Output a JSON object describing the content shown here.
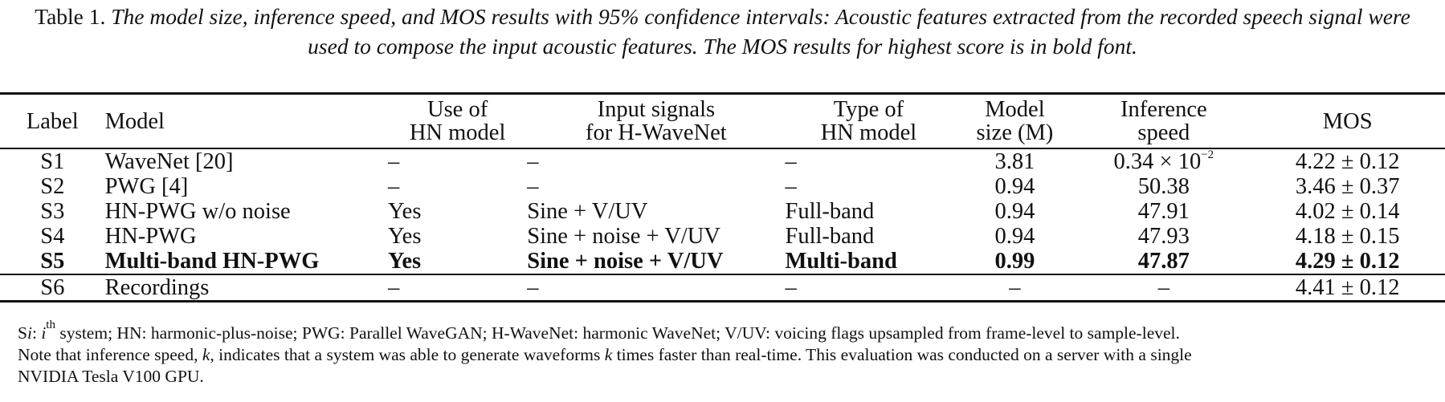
{
  "caption": {
    "label": "Table 1.",
    "text": "The model size, inference speed, and MOS results with 95% confidence intervals: Acoustic features extracted from the recorded speech signal were used to compose the input acoustic features. The MOS results for highest score is in bold font."
  },
  "table": {
    "headers": [
      [
        "Label"
      ],
      [
        "Model"
      ],
      [
        "Use of",
        "HN model"
      ],
      [
        "Input signals",
        "for H-WaveNet"
      ],
      [
        "Type of",
        "HN model"
      ],
      [
        "Model",
        "size (M)"
      ],
      [
        "Inference",
        "speed"
      ],
      [
        "MOS"
      ]
    ],
    "rows": [
      {
        "label": "S1",
        "model": "WaveNet [20]",
        "use_hn": "–",
        "input": "–",
        "type": "–",
        "size": "3.81",
        "speed": "0.34 × 10",
        "speed_exp": "−2",
        "mos": "4.22 ± 0.12"
      },
      {
        "label": "S2",
        "model": "PWG [4]",
        "use_hn": "–",
        "input": "–",
        "type": "–",
        "size": "0.94",
        "speed": "50.38",
        "speed_exp": "",
        "mos": "3.46 ± 0.37"
      },
      {
        "label": "S3",
        "model": "HN-PWG w/o noise",
        "use_hn": "Yes",
        "input": "Sine + V/UV",
        "type": "Full-band",
        "size": "0.94",
        "speed": "47.91",
        "speed_exp": "",
        "mos": "4.02 ± 0.14"
      },
      {
        "label": "S4",
        "model": "HN-PWG",
        "use_hn": "Yes",
        "input": "Sine + noise + V/UV",
        "type": "Full-band",
        "size": "0.94",
        "speed": "47.93",
        "speed_exp": "",
        "mos": "4.18 ± 0.15"
      },
      {
        "label": "S5",
        "model": "Multi-band HN-PWG",
        "use_hn": "Yes",
        "input": "Sine + noise + V/UV",
        "type": "Multi-band",
        "size": "0.99",
        "speed": "47.87",
        "speed_exp": "",
        "mos": "4.29 ± 0.12",
        "bold": true
      },
      {
        "label": "S6",
        "model": "Recordings",
        "use_hn": "–",
        "input": "–",
        "type": "–",
        "size": "–",
        "speed": "–",
        "speed_exp": "",
        "mos": "4.41 ± 0.12"
      }
    ]
  },
  "footnote": {
    "si_prefix": "S",
    "si_var": "i",
    "si_colon": ": ",
    "si_i": "i",
    "si_sup": "th",
    "line1_rest": " system; HN: harmonic-plus-noise; PWG: Parallel WaveGAN; H-WaveNet: harmonic WaveNet; V/UV: voicing flags upsampled from frame-level to sample-level.",
    "line2_a": "Note that inference speed, ",
    "line2_k": "k",
    "line2_b": ", indicates that a system was able to generate waveforms ",
    "line2_k2": "k",
    "line2_c": " times faster than real-time. This evaluation was conducted on a server with a single",
    "line3": "NVIDIA Tesla V100 GPU."
  }
}
